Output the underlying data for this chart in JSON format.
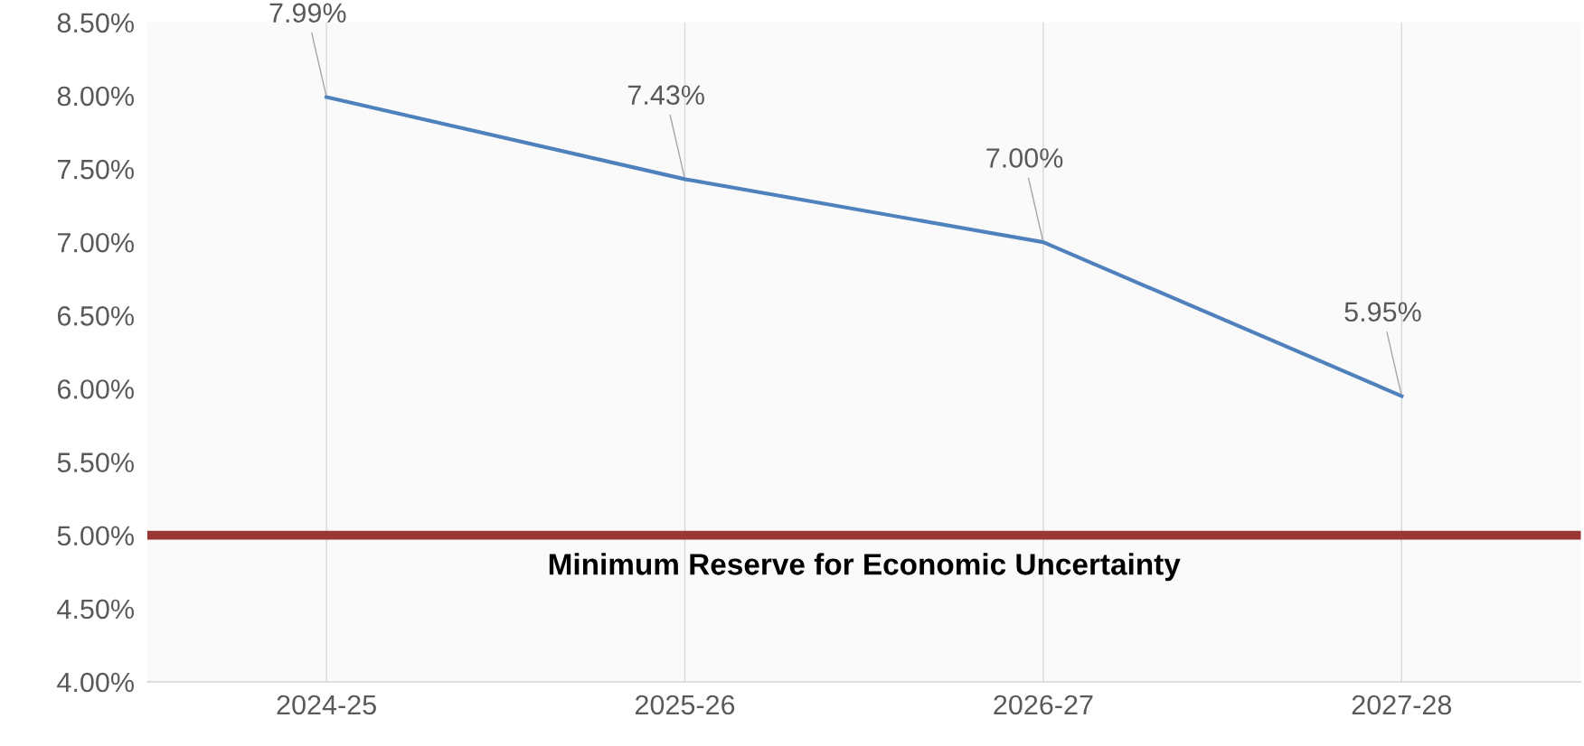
{
  "chart_data": {
    "type": "line",
    "categories": [
      "2024-25",
      "2025-26",
      "2026-27",
      "2027-28"
    ],
    "series": [
      {
        "color": "#4f81bd",
        "values": [
          7.99,
          7.43,
          7.0,
          5.95
        ],
        "value_labels": [
          "7.99%",
          "7.43%",
          "7.00%",
          "5.95%"
        ]
      }
    ],
    "ylim": [
      4.0,
      8.5
    ],
    "yticks": [
      {
        "value": 4.0,
        "label": "4.00%"
      },
      {
        "value": 4.5,
        "label": "4.50%"
      },
      {
        "value": 5.0,
        "label": "5.00%"
      },
      {
        "value": 5.5,
        "label": "5.50%"
      },
      {
        "value": 6.0,
        "label": "6.00%"
      },
      {
        "value": 6.5,
        "label": "6.50%"
      },
      {
        "value": 7.0,
        "label": "7.00%"
      },
      {
        "value": 7.5,
        "label": "7.50%"
      },
      {
        "value": 8.0,
        "label": "8.00%"
      },
      {
        "value": 8.5,
        "label": "8.50%"
      }
    ],
    "ref_lines": [
      {
        "axis": "y",
        "value": 5.0,
        "label": "Minimum Reserve for Economic Uncertainty",
        "color": "#993735"
      }
    ],
    "grid": "x",
    "legend": false,
    "marker": "none",
    "line_style": "solid"
  }
}
